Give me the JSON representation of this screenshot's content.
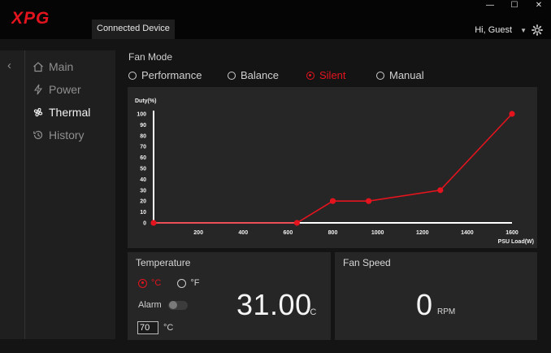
{
  "app": {
    "logo_text": "XPG",
    "brand_color": "#e4141e"
  },
  "header": {
    "tab_label": "Connected Device",
    "user_label": "Hi, Guest",
    "icons": [
      "minimize-icon",
      "maximize-icon",
      "close-icon",
      "chevron-down-icon",
      "gear-icon"
    ]
  },
  "sidebar": {
    "items": [
      {
        "label": "Main",
        "icon": "home-icon",
        "active": false
      },
      {
        "label": "Power",
        "icon": "bolt-icon",
        "active": false
      },
      {
        "label": "Thermal",
        "icon": "fan-icon",
        "active": true
      },
      {
        "label": "History",
        "icon": "history-icon",
        "active": false
      }
    ]
  },
  "fan_mode": {
    "label": "Fan Mode",
    "options": [
      "Performance",
      "Balance",
      "Silent",
      "Manual"
    ],
    "selected": "Silent"
  },
  "chart_data": {
    "type": "line",
    "ylabel": "Duty(%)",
    "xlabel": "PSU Load(W)",
    "x_ticks": [
      200,
      400,
      600,
      800,
      1000,
      1200,
      1400,
      1600
    ],
    "y_ticks": [
      0,
      10,
      20,
      30,
      40,
      50,
      60,
      70,
      80,
      90,
      100
    ],
    "xlim": [
      0,
      1600
    ],
    "ylim": [
      0,
      100
    ],
    "points": [
      {
        "x": 0,
        "y": 0
      },
      {
        "x": 640,
        "y": 0
      },
      {
        "x": 800,
        "y": 20
      },
      {
        "x": 960,
        "y": 20
      },
      {
        "x": 1280,
        "y": 30
      },
      {
        "x": 1600,
        "y": 100
      }
    ],
    "line_color": "#e4141e"
  },
  "temperature": {
    "title": "Temperature",
    "unit_options": [
      "°C",
      "°F"
    ],
    "selected_unit": "°C",
    "alarm_label": "Alarm",
    "alarm_on": false,
    "threshold_value": "70",
    "threshold_unit": "°C",
    "value": "31.00",
    "value_unit": "°C"
  },
  "fan_speed": {
    "title": "Fan Speed",
    "value": "0",
    "unit": "RPM"
  }
}
